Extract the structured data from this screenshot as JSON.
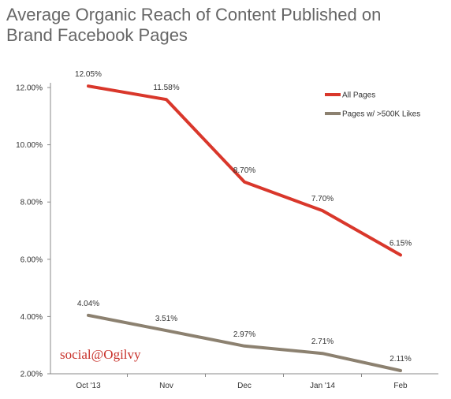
{
  "chart_data": {
    "type": "line",
    "title_line1": "Average Organic Reach of Content Published on",
    "title_line2": "Brand Facebook Pages",
    "categories": [
      "Oct '13",
      "Nov",
      "Dec",
      "Jan '14",
      "Feb"
    ],
    "series": [
      {
        "name": "All Pages",
        "color": "#d9372b",
        "values": [
          12.05,
          11.58,
          8.7,
          7.7,
          6.15
        ],
        "labels": [
          "12.05%",
          "11.58%",
          "8.70%",
          "7.70%",
          "6.15%"
        ]
      },
      {
        "name": "Pages w/ >500K Likes",
        "color": "#8c8170",
        "values": [
          4.04,
          3.51,
          2.97,
          2.71,
          2.11
        ],
        "labels": [
          "4.04%",
          "3.51%",
          "2.97%",
          "2.71%",
          "2.11%"
        ]
      }
    ],
    "ylim": [
      2,
      12
    ],
    "yticks": [
      2,
      4,
      6,
      8,
      10,
      12
    ],
    "ytick_labels": [
      "2.00%",
      "4.00%",
      "6.00%",
      "8.00%",
      "10.00%",
      "12.00%"
    ],
    "grid": false,
    "legend_position": "top-right",
    "xlabel": "",
    "ylabel": ""
  },
  "brand": {
    "text": "social@Ogilvy",
    "color": "#c8312a"
  }
}
